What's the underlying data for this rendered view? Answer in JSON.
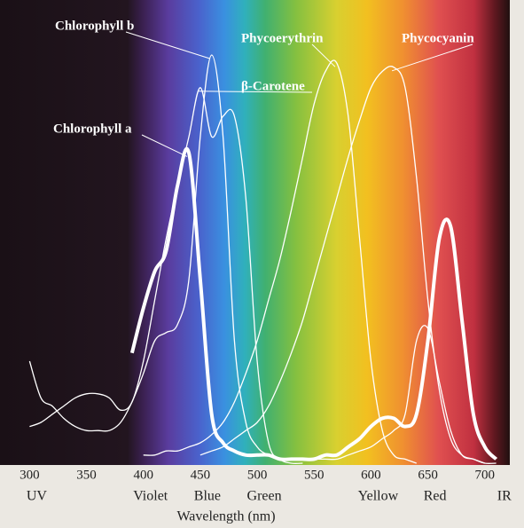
{
  "chart_data": {
    "type": "line",
    "x_label": "Wavelength (nm)",
    "x": [
      300,
      310,
      320,
      330,
      340,
      350,
      360,
      370,
      380,
      390,
      400,
      410,
      420,
      430,
      440,
      450,
      460,
      470,
      480,
      490,
      500,
      510,
      520,
      530,
      540,
      550,
      560,
      570,
      580,
      590,
      600,
      610,
      620,
      630,
      640,
      650,
      660,
      670,
      680,
      690,
      700,
      710,
      720
    ],
    "xlim": [
      274,
      722
    ],
    "xticks": [
      300,
      350,
      400,
      450,
      500,
      550,
      600,
      650,
      700
    ],
    "region_labels": [
      "UV",
      null,
      "Violet",
      "Blue",
      "Green",
      null,
      "Yellow",
      "Red",
      "IR"
    ],
    "ylim": [
      0,
      1
    ],
    "series": [
      {
        "name": "Chlorophyll a",
        "color": "#ffffff",
        "width": 4,
        "values": [
          null,
          null,
          null,
          null,
          null,
          null,
          null,
          null,
          null,
          0.27,
          0.38,
          0.47,
          0.52,
          0.68,
          0.76,
          0.45,
          0.12,
          0.05,
          0.03,
          0.02,
          0.02,
          0.02,
          0.01,
          0.01,
          0.01,
          0.01,
          0.02,
          0.02,
          0.04,
          0.06,
          0.09,
          0.11,
          0.11,
          0.09,
          0.12,
          0.3,
          0.55,
          0.58,
          0.35,
          0.12,
          0.04,
          0.01,
          null
        ]
      },
      {
        "name": "Chlorophyll b",
        "color": "#ffffff",
        "width": 1.3,
        "values": [
          0.25,
          0.16,
          0.14,
          0.11,
          0.09,
          0.08,
          0.08,
          0.08,
          0.1,
          0.15,
          0.22,
          0.3,
          0.32,
          0.34,
          0.45,
          0.8,
          1.0,
          0.8,
          0.3,
          0.1,
          0.04,
          0.02,
          0.01,
          0.01,
          0.01,
          0.01,
          0.01,
          0.01,
          0.02,
          0.03,
          0.04,
          0.06,
          0.08,
          0.12,
          0.3,
          0.33,
          0.2,
          0.08,
          0.02,
          0.01,
          0,
          0,
          null
        ]
      },
      {
        "name": "β-Carotene",
        "color": "#ffffff",
        "width": 1.3,
        "values": [
          0.09,
          0.1,
          0.12,
          0.14,
          0.16,
          0.17,
          0.17,
          0.16,
          0.13,
          0.15,
          0.25,
          0.4,
          0.55,
          0.68,
          0.8,
          0.92,
          0.8,
          0.85,
          0.85,
          0.65,
          0.25,
          0.05,
          0.01,
          0,
          0,
          null,
          null,
          null,
          null,
          null,
          null,
          null,
          null,
          null,
          null,
          null,
          null,
          null,
          null,
          null,
          null,
          null,
          null
        ]
      },
      {
        "name": "Phycoerythrin",
        "color": "#ffffff",
        "width": 1.3,
        "values": [
          null,
          null,
          null,
          null,
          null,
          null,
          null,
          null,
          null,
          null,
          0.02,
          0.02,
          0.03,
          0.03,
          0.04,
          0.05,
          0.07,
          0.1,
          0.15,
          0.22,
          0.3,
          0.4,
          0.5,
          0.62,
          0.75,
          0.88,
          0.96,
          0.98,
          0.85,
          0.55,
          0.25,
          0.08,
          0.02,
          0.01,
          0,
          null,
          null,
          null,
          null,
          null,
          null,
          null,
          null
        ]
      },
      {
        "name": "Phycocyanin",
        "color": "#ffffff",
        "width": 1.3,
        "values": [
          null,
          null,
          null,
          null,
          null,
          null,
          null,
          null,
          null,
          null,
          null,
          null,
          null,
          null,
          null,
          0.02,
          0.03,
          0.04,
          0.06,
          0.08,
          0.1,
          0.14,
          0.2,
          0.27,
          0.35,
          0.45,
          0.55,
          0.65,
          0.75,
          0.84,
          0.92,
          0.96,
          0.97,
          0.92,
          0.7,
          0.4,
          0.18,
          0.06,
          0.02,
          0.01,
          0,
          null,
          null
        ]
      }
    ]
  }
}
